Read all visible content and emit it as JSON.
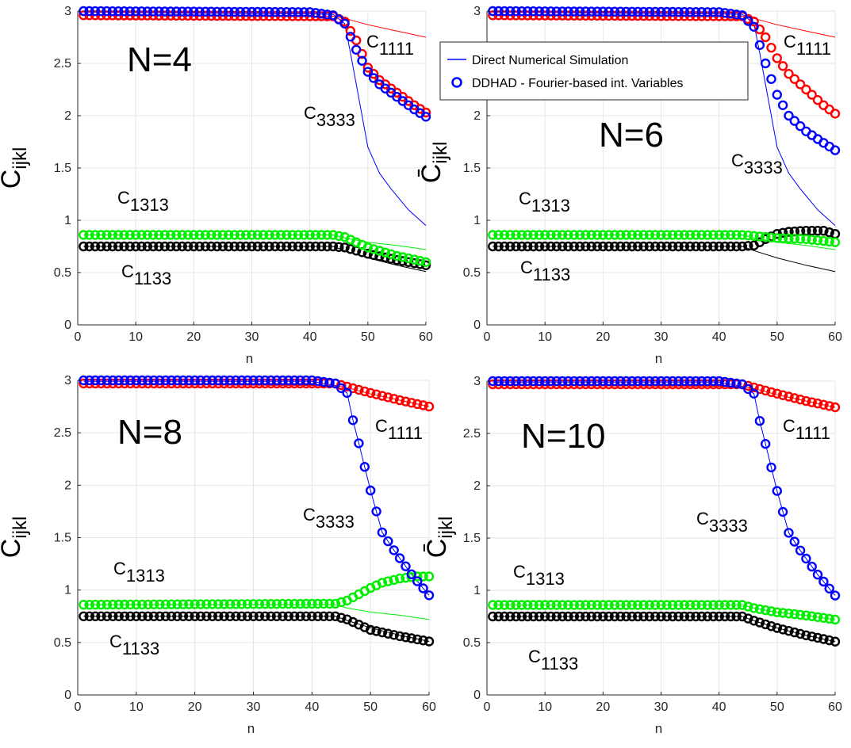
{
  "figure": {
    "legend": {
      "entries": [
        {
          "label": "Direct Numerical Simulation",
          "style": "line",
          "color": "#0000ff"
        },
        {
          "label": "DDHAD - Fourier-based int. Variables",
          "style": "marker",
          "color": "#0000ff"
        }
      ],
      "placement": "top-left of panel N=6"
    }
  },
  "colors": {
    "C1111": "#ff0000",
    "C3333": "#0000ff",
    "C1313": "#00ee00",
    "C1133": "#000000"
  },
  "chart_data": [
    {
      "type": "line",
      "title": "N=4",
      "xlabel": "n",
      "ylabel": "C̄ijkl",
      "xlim": [
        0,
        60
      ],
      "ylim": [
        0,
        3
      ],
      "xticks": [
        0,
        10,
        20,
        30,
        40,
        50,
        60
      ],
      "yticks": [
        0,
        0.5,
        1,
        1.5,
        2,
        2.5,
        3
      ],
      "grid": true,
      "annotations": [
        {
          "base": "C",
          "sub": "1111"
        },
        {
          "base": "C",
          "sub": "3333"
        },
        {
          "base": "C",
          "sub": "1313"
        },
        {
          "base": "C",
          "sub": "1133"
        }
      ],
      "dns": [
        {
          "component": "C1111",
          "x": [
            1,
            44,
            46,
            50,
            55,
            60
          ],
          "y": [
            2.96,
            2.95,
            2.93,
            2.87,
            2.81,
            2.75
          ]
        },
        {
          "component": "C3333",
          "x": [
            1,
            44,
            46,
            47,
            48,
            50,
            52,
            54,
            57,
            60
          ],
          "y": [
            2.99,
            2.97,
            2.88,
            2.6,
            2.3,
            1.7,
            1.45,
            1.3,
            1.1,
            0.95
          ]
        },
        {
          "component": "C1313",
          "x": [
            1,
            44,
            46,
            50,
            55,
            60
          ],
          "y": [
            0.86,
            0.86,
            0.83,
            0.79,
            0.76,
            0.72
          ]
        },
        {
          "component": "C1133",
          "x": [
            1,
            44,
            46,
            50,
            55,
            60
          ],
          "y": [
            0.75,
            0.75,
            0.71,
            0.64,
            0.57,
            0.51
          ]
        }
      ],
      "ddhad": [
        {
          "component": "C1111",
          "x": [
            1,
            44,
            46,
            48,
            50,
            52,
            55,
            58,
            60
          ],
          "y": [
            2.96,
            2.95,
            2.9,
            2.72,
            2.46,
            2.34,
            2.22,
            2.1,
            2.03
          ]
        },
        {
          "component": "C3333",
          "x": [
            1,
            40,
            44,
            46,
            48,
            50,
            52,
            55,
            58,
            60
          ],
          "y": [
            3.0,
            2.99,
            2.96,
            2.88,
            2.63,
            2.42,
            2.3,
            2.18,
            2.06,
            1.99
          ]
        },
        {
          "component": "C1313",
          "x": [
            1,
            44,
            46,
            48,
            50,
            55,
            60
          ],
          "y": [
            0.86,
            0.86,
            0.84,
            0.79,
            0.74,
            0.66,
            0.6
          ]
        },
        {
          "component": "C1133",
          "x": [
            1,
            44,
            46,
            48,
            50,
            55,
            60
          ],
          "y": [
            0.75,
            0.75,
            0.74,
            0.71,
            0.68,
            0.62,
            0.57
          ]
        }
      ]
    },
    {
      "type": "line",
      "title": "N=6",
      "xlabel": "n",
      "ylabel": "C̄ijkl",
      "xlim": [
        0,
        60
      ],
      "ylim": [
        0,
        3
      ],
      "xticks": [
        0,
        10,
        20,
        30,
        40,
        50,
        60
      ],
      "yticks": [
        0,
        0.5,
        1,
        1.5,
        2,
        2.5,
        3
      ],
      "grid": true,
      "annotations": [
        {
          "base": "C",
          "sub": "1111"
        },
        {
          "base": "C",
          "sub": "3333"
        },
        {
          "base": "C",
          "sub": "1313"
        },
        {
          "base": "C",
          "sub": "1133"
        }
      ],
      "dns": [
        {
          "component": "C1111",
          "x": [
            1,
            44,
            46,
            50,
            55,
            60
          ],
          "y": [
            2.96,
            2.95,
            2.93,
            2.87,
            2.81,
            2.75
          ]
        },
        {
          "component": "C3333",
          "x": [
            1,
            44,
            46,
            47,
            48,
            50,
            52,
            54,
            57,
            60
          ],
          "y": [
            2.99,
            2.97,
            2.88,
            2.6,
            2.3,
            1.7,
            1.45,
            1.3,
            1.1,
            0.95
          ]
        },
        {
          "component": "C1313",
          "x": [
            1,
            44,
            46,
            50,
            55,
            60
          ],
          "y": [
            0.86,
            0.86,
            0.83,
            0.79,
            0.76,
            0.72
          ]
        },
        {
          "component": "C1133",
          "x": [
            1,
            44,
            46,
            50,
            55,
            60
          ],
          "y": [
            0.75,
            0.75,
            0.71,
            0.64,
            0.57,
            0.51
          ]
        }
      ],
      "ddhad": [
        {
          "component": "C1111",
          "x": [
            1,
            44,
            46,
            48,
            50,
            52,
            55,
            58,
            60
          ],
          "y": [
            2.96,
            2.95,
            2.9,
            2.75,
            2.55,
            2.4,
            2.25,
            2.1,
            2.02
          ]
        },
        {
          "component": "C3333",
          "x": [
            1,
            40,
            44,
            46,
            48,
            50,
            52,
            55,
            58,
            60
          ],
          "y": [
            3.0,
            2.99,
            2.96,
            2.85,
            2.5,
            2.2,
            2.0,
            1.85,
            1.74,
            1.67
          ]
        },
        {
          "component": "C1313",
          "x": [
            1,
            44,
            46,
            48,
            50,
            55,
            60
          ],
          "y": [
            0.86,
            0.86,
            0.85,
            0.84,
            0.83,
            0.82,
            0.79
          ]
        },
        {
          "component": "C1133",
          "x": [
            1,
            44,
            46,
            48,
            50,
            52,
            55,
            58,
            60
          ],
          "y": [
            0.75,
            0.75,
            0.76,
            0.82,
            0.87,
            0.89,
            0.9,
            0.9,
            0.87
          ]
        }
      ]
    },
    {
      "type": "line",
      "title": "N=8",
      "xlabel": "n",
      "ylabel": "C̄ijkl",
      "xlim": [
        0,
        60
      ],
      "ylim": [
        0,
        3
      ],
      "xticks": [
        0,
        10,
        20,
        30,
        40,
        50,
        60
      ],
      "yticks": [
        0,
        0.5,
        1,
        1.5,
        2,
        2.5,
        3
      ],
      "grid": true,
      "annotations": [
        {
          "base": "C",
          "sub": "1111"
        },
        {
          "base": "C",
          "sub": "3333"
        },
        {
          "base": "C",
          "sub": "1313"
        },
        {
          "base": "C",
          "sub": "1133"
        }
      ],
      "dns": [
        {
          "component": "C1111",
          "x": [
            1,
            44,
            46,
            50,
            55,
            60
          ],
          "y": [
            2.96,
            2.95,
            2.93,
            2.87,
            2.81,
            2.75
          ]
        },
        {
          "component": "C3333",
          "x": [
            1,
            40,
            44,
            46,
            47,
            48,
            50,
            52,
            54,
            57,
            60
          ],
          "y": [
            2.99,
            2.99,
            2.95,
            2.88,
            2.62,
            2.4,
            1.95,
            1.55,
            1.38,
            1.15,
            0.95
          ]
        },
        {
          "component": "C1313",
          "x": [
            1,
            44,
            46,
            50,
            55,
            60
          ],
          "y": [
            0.86,
            0.86,
            0.83,
            0.79,
            0.76,
            0.72
          ]
        },
        {
          "component": "C1133",
          "x": [
            1,
            44,
            46,
            50,
            55,
            60
          ],
          "y": [
            0.75,
            0.75,
            0.71,
            0.64,
            0.57,
            0.51
          ]
        }
      ],
      "ddhad": [
        {
          "component": "C1111",
          "x": [
            1,
            44,
            46,
            50,
            55,
            60
          ],
          "y": [
            2.97,
            2.97,
            2.94,
            2.88,
            2.81,
            2.75
          ]
        },
        {
          "component": "C3333",
          "x": [
            1,
            40,
            44,
            46,
            47,
            48,
            50,
            52,
            54,
            57,
            60
          ],
          "y": [
            3.0,
            3.0,
            2.97,
            2.88,
            2.62,
            2.4,
            1.95,
            1.55,
            1.38,
            1.15,
            0.95
          ]
        },
        {
          "component": "C1313",
          "x": [
            1,
            44,
            46,
            48,
            50,
            52,
            55,
            58,
            60
          ],
          "y": [
            0.86,
            0.87,
            0.9,
            0.96,
            1.02,
            1.07,
            1.11,
            1.13,
            1.13
          ]
        },
        {
          "component": "C1133",
          "x": [
            1,
            44,
            46,
            48,
            50,
            55,
            60
          ],
          "y": [
            0.75,
            0.75,
            0.72,
            0.67,
            0.62,
            0.56,
            0.51
          ]
        }
      ]
    },
    {
      "type": "line",
      "title": "N=10",
      "xlabel": "n",
      "ylabel": "C̄ijkl",
      "xlim": [
        0,
        60
      ],
      "ylim": [
        0,
        3
      ],
      "xticks": [
        0,
        10,
        20,
        30,
        40,
        50,
        60
      ],
      "yticks": [
        0,
        0.5,
        1,
        1.5,
        2,
        2.5,
        3
      ],
      "grid": true,
      "annotations": [
        {
          "base": "C",
          "sub": "1111"
        },
        {
          "base": "C",
          "sub": "3333"
        },
        {
          "base": "C",
          "sub": "1313"
        },
        {
          "base": "C",
          "sub": "1133"
        }
      ],
      "dns": [
        {
          "component": "C1111",
          "x": [
            1,
            44,
            46,
            50,
            55,
            60
          ],
          "y": [
            2.96,
            2.95,
            2.93,
            2.87,
            2.81,
            2.75
          ]
        },
        {
          "component": "C3333",
          "x": [
            1,
            40,
            44,
            46,
            47,
            48,
            50,
            52,
            54,
            57,
            60
          ],
          "y": [
            2.99,
            2.99,
            2.95,
            2.88,
            2.62,
            2.4,
            1.95,
            1.55,
            1.38,
            1.15,
            0.95
          ]
        },
        {
          "component": "C1313",
          "x": [
            1,
            44,
            46,
            50,
            55,
            60
          ],
          "y": [
            0.86,
            0.86,
            0.83,
            0.79,
            0.76,
            0.72
          ]
        },
        {
          "component": "C1133",
          "x": [
            1,
            44,
            46,
            50,
            55,
            60
          ],
          "y": [
            0.75,
            0.75,
            0.71,
            0.64,
            0.57,
            0.51
          ]
        }
      ],
      "ddhad": [
        {
          "component": "C1111",
          "x": [
            1,
            44,
            46,
            50,
            55,
            60
          ],
          "y": [
            2.97,
            2.97,
            2.94,
            2.88,
            2.81,
            2.75
          ]
        },
        {
          "component": "C3333",
          "x": [
            1,
            40,
            44,
            46,
            47,
            48,
            50,
            52,
            54,
            57,
            60
          ],
          "y": [
            3.0,
            3.0,
            2.97,
            2.88,
            2.62,
            2.4,
            1.95,
            1.55,
            1.38,
            1.15,
            0.95
          ]
        },
        {
          "component": "C1313",
          "x": [
            1,
            44,
            46,
            50,
            55,
            60
          ],
          "y": [
            0.86,
            0.86,
            0.83,
            0.79,
            0.76,
            0.72
          ]
        },
        {
          "component": "C1133",
          "x": [
            1,
            44,
            46,
            50,
            55,
            60
          ],
          "y": [
            0.75,
            0.75,
            0.71,
            0.64,
            0.57,
            0.51
          ]
        }
      ]
    }
  ]
}
